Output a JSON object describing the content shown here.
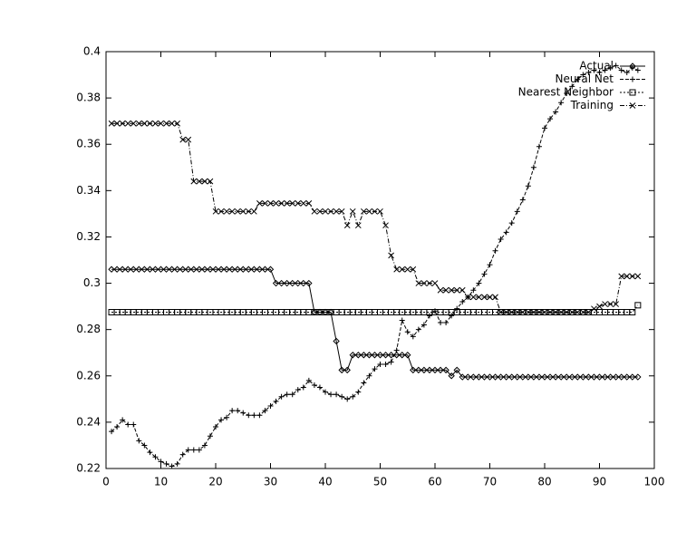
{
  "chart_data": {
    "type": "line",
    "x": [
      1,
      2,
      3,
      4,
      5,
      6,
      7,
      8,
      9,
      10,
      11,
      12,
      13,
      14,
      15,
      16,
      17,
      18,
      19,
      20,
      21,
      22,
      23,
      24,
      25,
      26,
      27,
      28,
      29,
      30,
      31,
      32,
      33,
      34,
      35,
      36,
      37,
      38,
      39,
      40,
      41,
      42,
      43,
      44,
      45,
      46,
      47,
      48,
      49,
      50,
      51,
      52,
      53,
      54,
      55,
      56,
      57,
      58,
      59,
      60,
      61,
      62,
      63,
      64,
      65,
      66,
      67,
      68,
      69,
      70,
      71,
      72,
      73,
      74,
      75,
      76,
      77,
      78,
      79,
      80,
      81,
      82,
      83,
      84,
      85,
      86,
      87,
      88,
      89,
      90,
      91,
      92,
      93,
      94,
      95,
      96,
      97
    ],
    "series": [
      {
        "name": "Actual",
        "color": "#000000",
        "marker": "diamond",
        "dash": "none",
        "values": [
          0.306,
          0.306,
          0.306,
          0.306,
          0.306,
          0.306,
          0.306,
          0.306,
          0.306,
          0.306,
          0.306,
          0.306,
          0.306,
          0.306,
          0.306,
          0.306,
          0.306,
          0.306,
          0.306,
          0.306,
          0.306,
          0.306,
          0.306,
          0.306,
          0.306,
          0.306,
          0.306,
          0.306,
          0.306,
          0.306,
          0.3,
          0.3,
          0.3,
          0.3,
          0.3,
          0.3,
          0.3,
          0.2875,
          0.2875,
          0.2875,
          0.2875,
          0.275,
          0.2625,
          0.2625,
          0.269,
          0.269,
          0.269,
          0.269,
          0.269,
          0.269,
          0.269,
          0.269,
          0.269,
          0.269,
          0.269,
          0.2625,
          0.2625,
          0.2625,
          0.2625,
          0.2625,
          0.2625,
          0.2625,
          0.26,
          0.2625,
          0.2595,
          0.2595,
          0.2595,
          0.2595,
          0.2595,
          0.2595,
          0.2595,
          0.2595,
          0.2595,
          0.2595,
          0.2595,
          0.2595,
          0.2595,
          0.2595,
          0.2595,
          0.2595,
          0.2595,
          0.2595,
          0.2595,
          0.2595,
          0.2595,
          0.2595,
          0.2595,
          0.2595,
          0.2595,
          0.2595,
          0.2595,
          0.2595,
          0.2595,
          0.2595,
          0.2595,
          0.2595,
          0.2595
        ]
      },
      {
        "name": "Neural Net",
        "color": "#000000",
        "marker": "plus",
        "dash": "4 2",
        "values": [
          0.236,
          0.238,
          0.241,
          0.239,
          0.239,
          0.232,
          0.23,
          0.227,
          0.225,
          0.223,
          0.222,
          0.221,
          0.222,
          0.226,
          0.228,
          0.228,
          0.228,
          0.23,
          0.234,
          0.238,
          0.241,
          0.242,
          0.245,
          0.245,
          0.244,
          0.243,
          0.243,
          0.243,
          0.245,
          0.247,
          0.249,
          0.251,
          0.252,
          0.252,
          0.254,
          0.255,
          0.258,
          0.256,
          0.255,
          0.253,
          0.252,
          0.252,
          0.251,
          0.25,
          0.251,
          0.253,
          0.257,
          0.26,
          0.263,
          0.265,
          0.265,
          0.266,
          0.271,
          0.284,
          0.279,
          0.277,
          0.28,
          0.282,
          0.286,
          0.288,
          0.283,
          0.283,
          0.286,
          0.289,
          0.292,
          0.294,
          0.297,
          0.3,
          0.304,
          0.308,
          0.314,
          0.319,
          0.322,
          0.326,
          0.331,
          0.336,
          0.342,
          0.35,
          0.359,
          0.367,
          0.371,
          0.374,
          0.378,
          0.382,
          0.385,
          0.388,
          0.39,
          0.391,
          0.392,
          0.391,
          0.392,
          0.393,
          0.394,
          0.392,
          0.391,
          0.393,
          0.392
        ]
      },
      {
        "name": "Nearest Neighbor",
        "color": "#000000",
        "marker": "square",
        "dash": "2 2",
        "values": [
          0.2875,
          0.2875,
          0.2875,
          0.2875,
          0.2875,
          0.2875,
          0.2875,
          0.2875,
          0.2875,
          0.2875,
          0.2875,
          0.2875,
          0.2875,
          0.2875,
          0.2875,
          0.2875,
          0.2875,
          0.2875,
          0.2875,
          0.2875,
          0.2875,
          0.2875,
          0.2875,
          0.2875,
          0.2875,
          0.2875,
          0.2875,
          0.2875,
          0.2875,
          0.2875,
          0.2875,
          0.2875,
          0.2875,
          0.2875,
          0.2875,
          0.2875,
          0.2875,
          0.2875,
          0.2875,
          0.2875,
          0.2875,
          0.2875,
          0.2875,
          0.2875,
          0.2875,
          0.2875,
          0.2875,
          0.2875,
          0.2875,
          0.2875,
          0.2875,
          0.2875,
          0.2875,
          0.2875,
          0.2875,
          0.2875,
          0.2875,
          0.2875,
          0.2875,
          0.2875,
          0.2875,
          0.2875,
          0.2875,
          0.2875,
          0.2875,
          0.2875,
          0.2875,
          0.2875,
          0.2875,
          0.2875,
          0.2875,
          0.2875,
          0.2875,
          0.2875,
          0.2875,
          0.2875,
          0.2875,
          0.2875,
          0.2875,
          0.2875,
          0.2875,
          0.2875,
          0.2875,
          0.2875,
          0.2875,
          0.2875,
          0.2875,
          0.2875,
          0.2875,
          0.2875,
          0.2875,
          0.2875,
          0.2875,
          0.2875,
          0.2875,
          0.2875,
          0.2905
        ]
      },
      {
        "name": "Training",
        "color": "#000000",
        "marker": "cross",
        "dash": "5 2 1 2",
        "values": [
          0.369,
          0.369,
          0.369,
          0.369,
          0.369,
          0.369,
          0.369,
          0.369,
          0.369,
          0.369,
          0.369,
          0.369,
          0.369,
          0.362,
          0.362,
          0.344,
          0.344,
          0.344,
          0.344,
          0.331,
          0.331,
          0.331,
          0.331,
          0.331,
          0.331,
          0.331,
          0.331,
          0.3345,
          0.3345,
          0.3345,
          0.3345,
          0.3345,
          0.3345,
          0.3345,
          0.3345,
          0.3345,
          0.3345,
          0.331,
          0.331,
          0.331,
          0.331,
          0.331,
          0.331,
          0.325,
          0.331,
          0.325,
          0.331,
          0.331,
          0.331,
          0.331,
          0.325,
          0.312,
          0.306,
          0.306,
          0.306,
          0.306,
          0.3,
          0.3,
          0.3,
          0.3,
          0.297,
          0.297,
          0.297,
          0.297,
          0.297,
          0.294,
          0.294,
          0.294,
          0.294,
          0.294,
          0.294,
          0.2875,
          0.2875,
          0.2875,
          0.2875,
          0.2875,
          0.2875,
          0.2875,
          0.2875,
          0.2875,
          0.2875,
          0.2875,
          0.2875,
          0.2875,
          0.2875,
          0.2875,
          0.2875,
          0.2875,
          0.289,
          0.29,
          0.291,
          0.291,
          0.291,
          0.303,
          0.303,
          0.303,
          0.303
        ]
      }
    ],
    "xlim": [
      0,
      100
    ],
    "xticks": [
      0,
      10,
      20,
      30,
      40,
      50,
      60,
      70,
      80,
      90,
      100
    ],
    "ylim": [
      0.22,
      0.4
    ],
    "yticks": [
      0.22,
      0.24,
      0.26,
      0.28,
      0.3,
      0.32,
      0.34,
      0.36,
      0.38,
      0.4
    ],
    "legend": "top-right",
    "grid": false
  }
}
